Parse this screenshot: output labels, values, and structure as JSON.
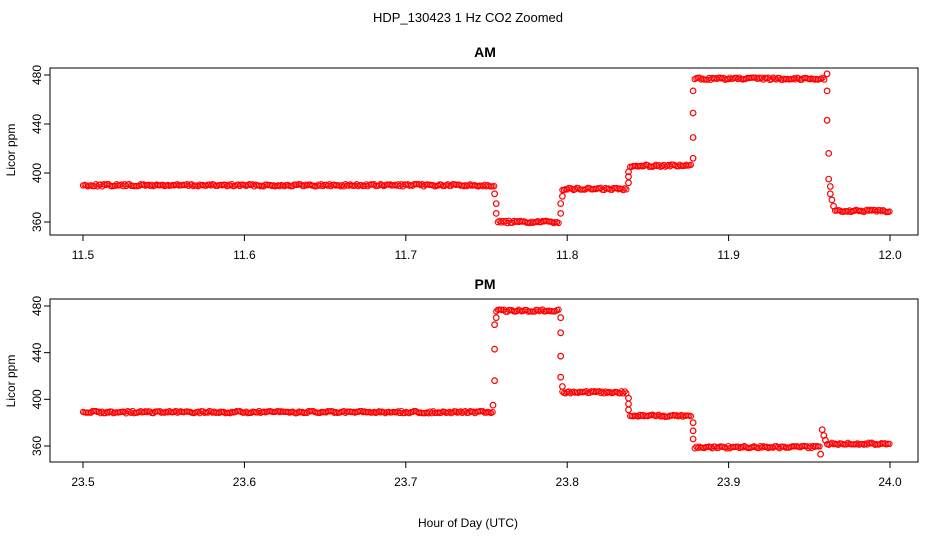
{
  "figure": {
    "title": "HDP_130423  1 Hz CO2 Zoomed",
    "xlabel": "Hour of Day (UTC)"
  },
  "chart_data": [
    {
      "type": "scatter",
      "title": "AM",
      "ylabel": "Licor ppm",
      "xlim": [
        11.5,
        12.0
      ],
      "ylim": [
        356,
        484
      ],
      "xticks": [
        "11.5",
        "11.6",
        "11.7",
        "11.8",
        "11.9",
        "12.0"
      ],
      "yticks": [
        "360",
        "400",
        "440",
        "480"
      ],
      "marker_color": "#ff0000",
      "segments": [
        {
          "x_start": 11.5,
          "x_end": 11.755,
          "y": 390
        },
        {
          "x_start": 11.757,
          "x_end": 11.795,
          "y": 360
        },
        {
          "x_start": 11.797,
          "x_end": 11.837,
          "y": 387
        },
        {
          "x_start": 11.839,
          "x_end": 11.877,
          "y": 406
        },
        {
          "x_start": 11.879,
          "x_end": 11.96,
          "y": 477
        },
        {
          "x_start": 11.966,
          "x_end": 12.0,
          "y": 369
        }
      ],
      "transition_points": [
        {
          "x": 11.755,
          "y": 383
        },
        {
          "x": 11.756,
          "y": 375
        },
        {
          "x": 11.756,
          "y": 367
        },
        {
          "x": 11.796,
          "y": 367
        },
        {
          "x": 11.796,
          "y": 375
        },
        {
          "x": 11.797,
          "y": 381
        },
        {
          "x": 11.838,
          "y": 392
        },
        {
          "x": 11.838,
          "y": 397
        },
        {
          "x": 11.838,
          "y": 401
        },
        {
          "x": 11.878,
          "y": 412
        },
        {
          "x": 11.878,
          "y": 429
        },
        {
          "x": 11.878,
          "y": 449
        },
        {
          "x": 11.878,
          "y": 467
        },
        {
          "x": 11.961,
          "y": 481
        },
        {
          "x": 11.961,
          "y": 467
        },
        {
          "x": 11.961,
          "y": 443
        },
        {
          "x": 11.962,
          "y": 416
        },
        {
          "x": 11.962,
          "y": 395
        },
        {
          "x": 11.963,
          "y": 389
        },
        {
          "x": 11.963,
          "y": 383
        },
        {
          "x": 11.964,
          "y": 378
        },
        {
          "x": 11.965,
          "y": 373
        }
      ]
    },
    {
      "type": "scatter",
      "title": "PM",
      "ylabel": "Licor ppm",
      "xlim": [
        23.5,
        24.0
      ],
      "ylim": [
        356,
        484
      ],
      "xticks": [
        "23.5",
        "23.6",
        "23.7",
        "23.8",
        "23.9",
        "24.0"
      ],
      "yticks": [
        "360",
        "400",
        "440",
        "480"
      ],
      "marker_color": "#ff0000",
      "segments": [
        {
          "x_start": 23.5,
          "x_end": 23.754,
          "y": 389
        },
        {
          "x_start": 23.756,
          "x_end": 23.795,
          "y": 476
        },
        {
          "x_start": 23.797,
          "x_end": 23.837,
          "y": 406
        },
        {
          "x_start": 23.839,
          "x_end": 23.877,
          "y": 386
        },
        {
          "x_start": 23.879,
          "x_end": 23.957,
          "y": 359
        },
        {
          "x_start": 23.961,
          "x_end": 24.0,
          "y": 362
        }
      ],
      "transition_points": [
        {
          "x": 23.754,
          "y": 395
        },
        {
          "x": 23.755,
          "y": 416
        },
        {
          "x": 23.755,
          "y": 443
        },
        {
          "x": 23.755,
          "y": 464
        },
        {
          "x": 23.756,
          "y": 470
        },
        {
          "x": 23.796,
          "y": 470
        },
        {
          "x": 23.796,
          "y": 457
        },
        {
          "x": 23.796,
          "y": 437
        },
        {
          "x": 23.796,
          "y": 419
        },
        {
          "x": 23.797,
          "y": 411
        },
        {
          "x": 23.838,
          "y": 401
        },
        {
          "x": 23.838,
          "y": 396
        },
        {
          "x": 23.838,
          "y": 391
        },
        {
          "x": 23.878,
          "y": 380
        },
        {
          "x": 23.878,
          "y": 373
        },
        {
          "x": 23.878,
          "y": 366
        },
        {
          "x": 23.957,
          "y": 353
        },
        {
          "x": 23.958,
          "y": 374
        },
        {
          "x": 23.959,
          "y": 369
        },
        {
          "x": 23.96,
          "y": 365
        }
      ]
    }
  ]
}
